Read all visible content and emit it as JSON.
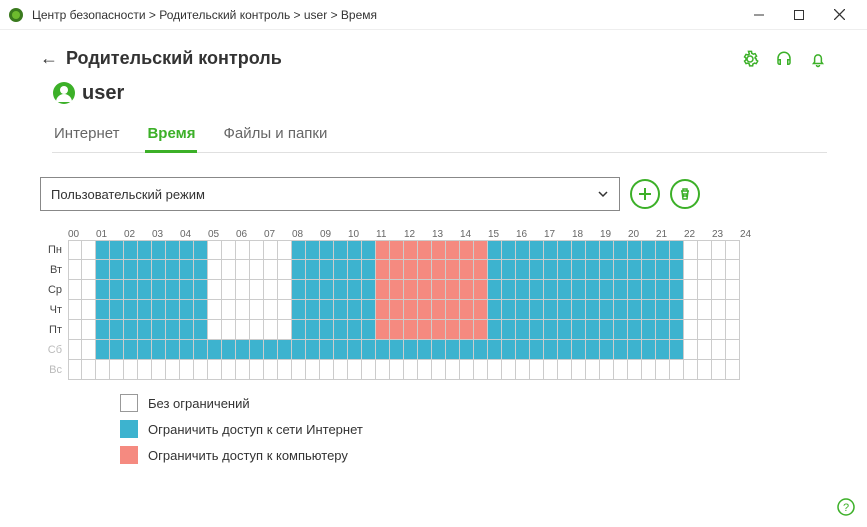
{
  "titlebar": {
    "breadcrumb": "Центр безопасности > Родительский контроль > user > Время"
  },
  "header": {
    "back_title": "Родительский контроль",
    "user_name": "user"
  },
  "tabs": [
    {
      "label": "Интернет",
      "active": false
    },
    {
      "label": "Время",
      "active": true
    },
    {
      "label": "Файлы и папки",
      "active": false
    }
  ],
  "mode": {
    "selected": "Пользовательский режим"
  },
  "schedule": {
    "hours": [
      "00",
      "01",
      "02",
      "03",
      "04",
      "05",
      "06",
      "07",
      "08",
      "09",
      "10",
      "11",
      "12",
      "13",
      "14",
      "15",
      "16",
      "17",
      "18",
      "19",
      "20",
      "21",
      "22",
      "23",
      "24"
    ],
    "days": [
      {
        "label": "Пн",
        "weekend": false
      },
      {
        "label": "Вт",
        "weekend": false
      },
      {
        "label": "Ср",
        "weekend": false
      },
      {
        "label": "Чт",
        "weekend": false
      },
      {
        "label": "Пт",
        "weekend": false
      },
      {
        "label": "Сб",
        "weekend": true
      },
      {
        "label": "Вс",
        "weekend": true
      }
    ],
    "colors": {
      "none": "#ffffff",
      "internet": "#3db3cf",
      "computer": "#f58a80",
      "border": "#cccccc"
    },
    "cells": [
      [
        0,
        0,
        1,
        1,
        1,
        1,
        1,
        1,
        1,
        1,
        0,
        0,
        0,
        0,
        0,
        0,
        1,
        1,
        1,
        1,
        1,
        1,
        2,
        2,
        2,
        2,
        2,
        2,
        2,
        2,
        1,
        1,
        1,
        1,
        1,
        1,
        1,
        1,
        1,
        1,
        1,
        1,
        1,
        1,
        0,
        0,
        0,
        0
      ],
      [
        0,
        0,
        1,
        1,
        1,
        1,
        1,
        1,
        1,
        1,
        0,
        0,
        0,
        0,
        0,
        0,
        1,
        1,
        1,
        1,
        1,
        1,
        2,
        2,
        2,
        2,
        2,
        2,
        2,
        2,
        1,
        1,
        1,
        1,
        1,
        1,
        1,
        1,
        1,
        1,
        1,
        1,
        1,
        1,
        0,
        0,
        0,
        0
      ],
      [
        0,
        0,
        1,
        1,
        1,
        1,
        1,
        1,
        1,
        1,
        0,
        0,
        0,
        0,
        0,
        0,
        1,
        1,
        1,
        1,
        1,
        1,
        2,
        2,
        2,
        2,
        2,
        2,
        2,
        2,
        1,
        1,
        1,
        1,
        1,
        1,
        1,
        1,
        1,
        1,
        1,
        1,
        1,
        1,
        0,
        0,
        0,
        0
      ],
      [
        0,
        0,
        1,
        1,
        1,
        1,
        1,
        1,
        1,
        1,
        0,
        0,
        0,
        0,
        0,
        0,
        1,
        1,
        1,
        1,
        1,
        1,
        2,
        2,
        2,
        2,
        2,
        2,
        2,
        2,
        1,
        1,
        1,
        1,
        1,
        1,
        1,
        1,
        1,
        1,
        1,
        1,
        1,
        1,
        0,
        0,
        0,
        0
      ],
      [
        0,
        0,
        1,
        1,
        1,
        1,
        1,
        1,
        1,
        1,
        0,
        0,
        0,
        0,
        0,
        0,
        1,
        1,
        1,
        1,
        1,
        1,
        2,
        2,
        2,
        2,
        2,
        2,
        2,
        2,
        1,
        1,
        1,
        1,
        1,
        1,
        1,
        1,
        1,
        1,
        1,
        1,
        1,
        1,
        0,
        0,
        0,
        0
      ],
      [
        0,
        0,
        1,
        1,
        1,
        1,
        1,
        1,
        1,
        1,
        1,
        1,
        1,
        1,
        1,
        1,
        1,
        1,
        1,
        1,
        1,
        1,
        1,
        1,
        1,
        1,
        1,
        1,
        1,
        1,
        1,
        1,
        1,
        1,
        1,
        1,
        1,
        1,
        1,
        1,
        1,
        1,
        1,
        1,
        0,
        0,
        0,
        0
      ],
      [
        0,
        0,
        0,
        0,
        0,
        0,
        0,
        0,
        0,
        0,
        0,
        0,
        0,
        0,
        0,
        0,
        0,
        0,
        0,
        0,
        0,
        0,
        0,
        0,
        0,
        0,
        0,
        0,
        0,
        0,
        0,
        0,
        0,
        0,
        0,
        0,
        0,
        0,
        0,
        0,
        0,
        0,
        0,
        0,
        0,
        0,
        0,
        0
      ]
    ]
  },
  "legend": {
    "none": "Без ограничений",
    "internet": "Ограничить доступ к сети Интернет",
    "computer": "Ограничить доступ к компьютеру"
  },
  "accent": "#3cb028"
}
